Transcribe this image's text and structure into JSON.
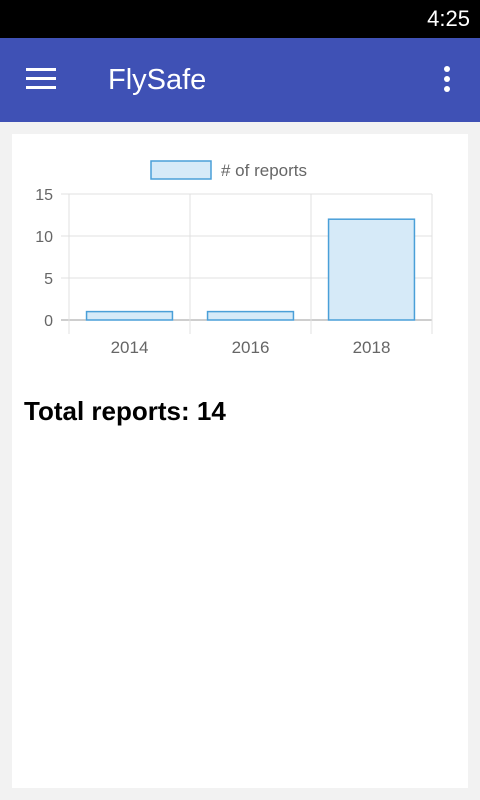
{
  "status_bar": {
    "time": "4:25"
  },
  "app_bar": {
    "title": "FlySafe",
    "menu_icon": "hamburger-menu-icon",
    "overflow_icon": "more-vert-icon"
  },
  "colors": {
    "primary": "#3f51b5",
    "bar_fill": "#d6eaf8",
    "bar_stroke": "#4a9fd8"
  },
  "chart_data": {
    "type": "bar",
    "categories": [
      "2014",
      "2016",
      "2018"
    ],
    "series": [
      {
        "name": "# of reports",
        "values": [
          1,
          1,
          12
        ]
      }
    ],
    "ylim": [
      0,
      15
    ],
    "yticks": [
      0,
      5,
      10,
      15
    ],
    "grid": true,
    "legend": "top-center",
    "title": "",
    "xlabel": "",
    "ylabel": ""
  },
  "summary": {
    "label": "Total reports:",
    "value": "14"
  }
}
